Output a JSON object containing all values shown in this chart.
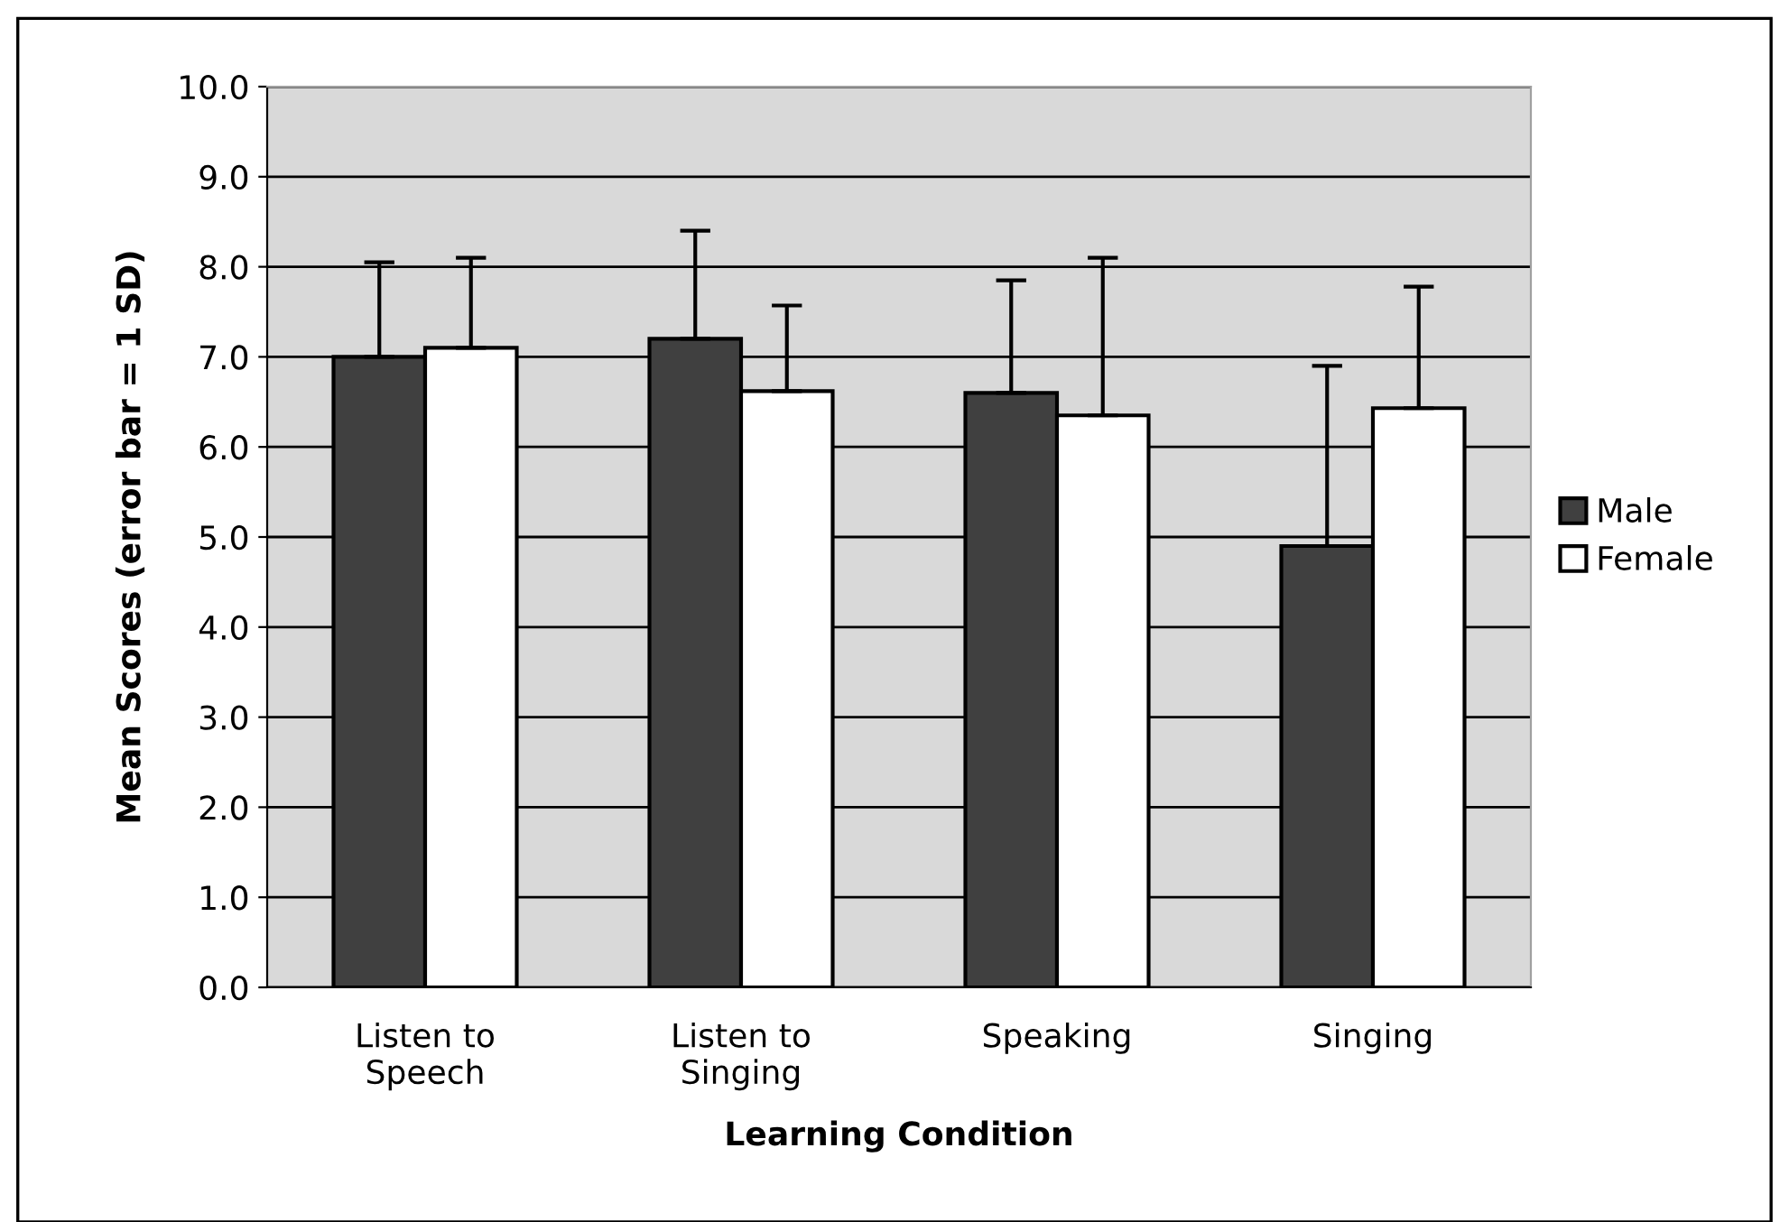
{
  "chart_data": {
    "type": "bar",
    "xlabel": "Learning Condition",
    "ylabel": "Mean Scores (error bar = 1 SD)",
    "categories": [
      "Listen to\nSpeech",
      "Listen to\nSinging",
      "Speaking",
      "Singing"
    ],
    "series": [
      {
        "name": "Male",
        "color": "#404040",
        "values": [
          7.0,
          7.2,
          6.6,
          4.9
        ],
        "errors": [
          [
            7.0,
            8.05
          ],
          [
            7.2,
            8.4
          ],
          [
            6.6,
            7.85
          ],
          [
            4.9,
            6.9
          ]
        ]
      },
      {
        "name": "Female",
        "color": "#ffffff",
        "values": [
          7.1,
          6.62,
          6.35,
          6.43
        ],
        "errors": [
          [
            7.1,
            8.1
          ],
          [
            6.62,
            7.57
          ],
          [
            6.35,
            8.1
          ],
          [
            6.43,
            7.78
          ]
        ]
      }
    ],
    "ylim": [
      0,
      10
    ],
    "yticks": [
      {
        "value": 0,
        "label": "0.0"
      },
      {
        "value": 1,
        "label": "1.0"
      },
      {
        "value": 2,
        "label": "2.0"
      },
      {
        "value": 3,
        "label": "3.0"
      },
      {
        "value": 4,
        "label": "4.0"
      },
      {
        "value": 5,
        "label": "5.0"
      },
      {
        "value": 6,
        "label": "6.0"
      },
      {
        "value": 7,
        "label": "7.0"
      },
      {
        "value": 8,
        "label": "8.0"
      },
      {
        "value": 9,
        "label": "9.0"
      },
      {
        "value": 10,
        "label": "10.0"
      }
    ],
    "grid": "y",
    "legend": "right"
  }
}
